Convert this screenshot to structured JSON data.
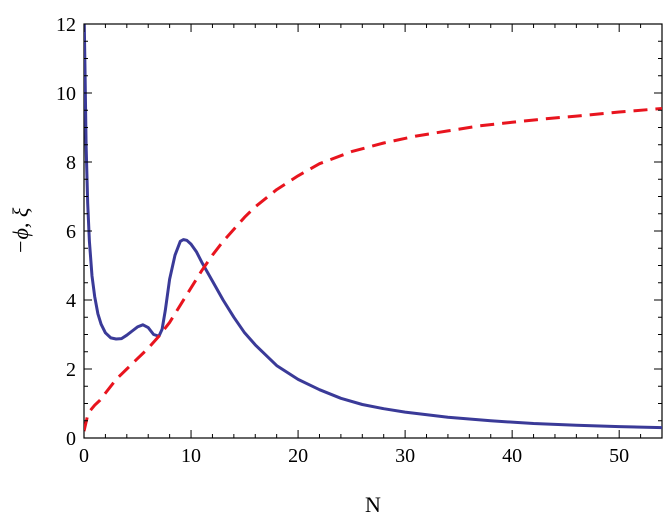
{
  "chart_data": {
    "type": "line",
    "title": "",
    "xlabel": "N",
    "ylabel": "−ϕ, ξ",
    "xlim": [
      0,
      54
    ],
    "ylim": [
      0,
      12
    ],
    "grid": false,
    "xticks": [
      0,
      10,
      20,
      30,
      40,
      50
    ],
    "yticks": [
      0,
      2,
      4,
      6,
      8,
      10,
      12
    ],
    "series": [
      {
        "style": "solid",
        "color": "#3a3a98",
        "x": [
          0.0,
          0.1,
          0.2,
          0.35,
          0.5,
          0.75,
          1.0,
          1.3,
          1.6,
          2.0,
          2.5,
          3.0,
          3.5,
          4.0,
          4.5,
          5.0,
          5.5,
          6.0,
          6.5,
          7.0,
          7.3,
          7.6,
          8.0,
          8.5,
          9.0,
          9.3,
          9.6,
          10.0,
          10.5,
          11.0,
          12.0,
          13.0,
          14.0,
          15.0,
          16.0,
          18.0,
          20.0,
          22.0,
          24.0,
          26.0,
          28.0,
          30.0,
          34.0,
          38.0,
          42.0,
          46.0,
          50.0,
          54.0
        ],
        "y": [
          12.5,
          10.5,
          8.5,
          6.8,
          5.7,
          4.7,
          4.1,
          3.6,
          3.3,
          3.05,
          2.9,
          2.87,
          2.88,
          2.98,
          3.1,
          3.22,
          3.28,
          3.2,
          3.0,
          2.95,
          3.15,
          3.7,
          4.6,
          5.3,
          5.7,
          5.75,
          5.73,
          5.62,
          5.4,
          5.1,
          4.55,
          4.0,
          3.5,
          3.05,
          2.7,
          2.1,
          1.7,
          1.4,
          1.15,
          0.97,
          0.85,
          0.75,
          0.6,
          0.5,
          0.42,
          0.37,
          0.33,
          0.3
        ]
      },
      {
        "style": "dashed",
        "color": "#e8141e",
        "x": [
          0.0,
          0.3,
          0.6,
          1.0,
          1.5,
          2.0,
          3.0,
          4.0,
          5.0,
          6.0,
          7.0,
          8.0,
          9.0,
          10.0,
          11.0,
          12.0,
          13.0,
          14.0,
          15.0,
          16.0,
          18.0,
          20.0,
          22.0,
          25.0,
          28.0,
          31.0,
          34.0,
          37.0,
          40.0,
          43.0,
          46.0,
          50.0,
          54.0
        ],
        "y": [
          0.2,
          0.6,
          0.8,
          0.95,
          1.1,
          1.3,
          1.7,
          2.0,
          2.3,
          2.6,
          2.95,
          3.35,
          3.85,
          4.35,
          4.85,
          5.3,
          5.7,
          6.05,
          6.4,
          6.7,
          7.2,
          7.6,
          7.95,
          8.3,
          8.55,
          8.75,
          8.9,
          9.05,
          9.15,
          9.25,
          9.33,
          9.45,
          9.55
        ]
      }
    ]
  }
}
